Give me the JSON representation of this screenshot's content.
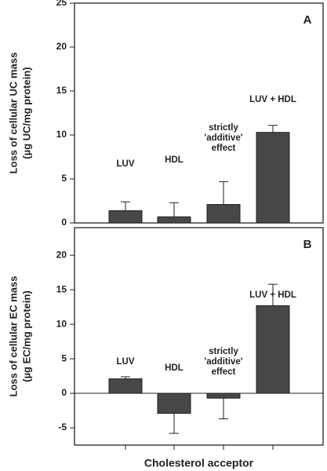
{
  "chart_data": [
    {
      "type": "bar",
      "panel": "A",
      "ylabel": [
        "Loss of cellular UC mass",
        "(µg UC/mg protein)"
      ],
      "categories": [
        "LUV",
        "HDL",
        "strictly 'additive' effect",
        "LUV + HDL"
      ],
      "values": [
        1.4,
        0.7,
        2.1,
        10.3
      ],
      "errors": [
        1.0,
        1.6,
        2.6,
        0.8
      ],
      "color": "#474747",
      "ylim": [
        0,
        25
      ],
      "yticks": [
        0,
        5,
        10,
        15,
        20,
        25
      ]
    },
    {
      "type": "bar",
      "panel": "B",
      "ylabel": [
        "Loss of cellular EC mass",
        "(µg EC/mg protein)"
      ],
      "categories": [
        "LUV",
        "HDL",
        "strictly 'additive' effect",
        "LUV + HDL"
      ],
      "values": [
        2.1,
        -2.9,
        -0.7,
        12.7
      ],
      "errors": [
        0.3,
        2.9,
        3.0,
        3.1
      ],
      "color": "#474747",
      "ylim": [
        -7.5,
        24
      ],
      "yticks": [
        -5,
        0,
        5,
        10,
        15,
        20
      ],
      "xlabel": "Cholesterol acceptor"
    }
  ]
}
